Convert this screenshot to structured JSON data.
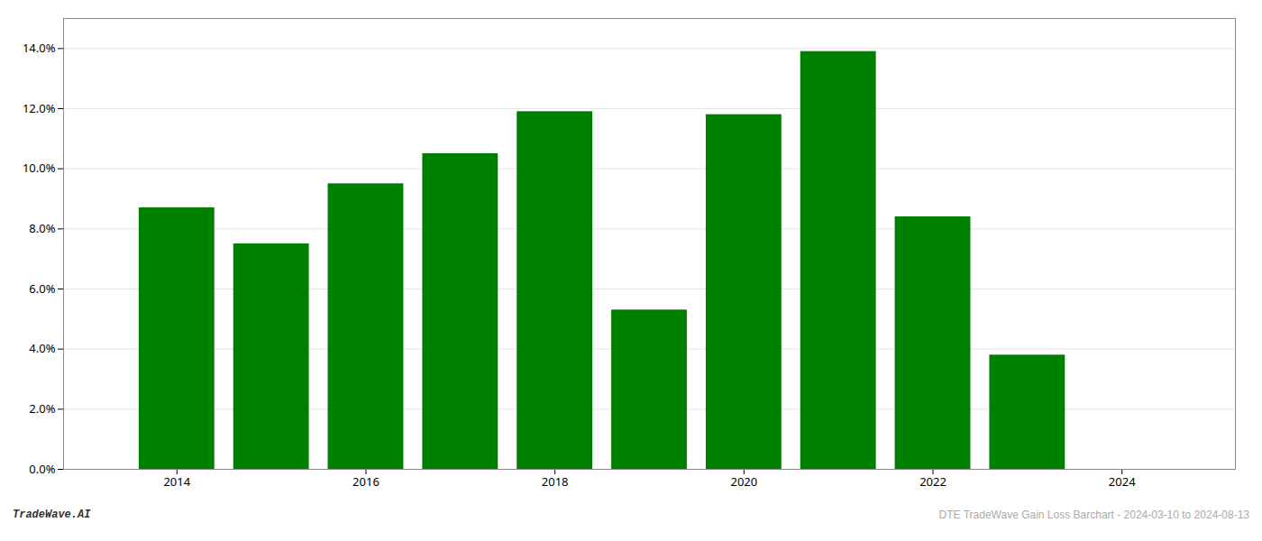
{
  "chart_data": {
    "type": "bar",
    "x": [
      2014,
      2015,
      2016,
      2017,
      2018,
      2019,
      2020,
      2021,
      2022,
      2023
    ],
    "values": [
      0.087,
      0.075,
      0.095,
      0.105,
      0.119,
      0.053,
      0.118,
      0.139,
      0.084,
      0.038
    ],
    "color": "#008000",
    "xlim": [
      2012.8,
      2025.2
    ],
    "xticks": [
      2014,
      2016,
      2018,
      2020,
      2022,
      2024
    ],
    "ylim": [
      0.0,
      0.15
    ],
    "yticks": [
      {
        "value": 0,
        "label": "0.0%"
      },
      {
        "value": 0.02,
        "label": "2.0%"
      },
      {
        "value": 0.04,
        "label": "4.0%"
      },
      {
        "value": 0.06,
        "label": "6.0%"
      },
      {
        "value": 0.08,
        "label": "8.0%"
      },
      {
        "value": 0.1,
        "label": "10.0%"
      },
      {
        "value": 0.12,
        "label": "12.0%"
      },
      {
        "value": 0.14,
        "label": "14.0%"
      }
    ],
    "grid": true,
    "annotations": [
      "TradeWave.AI",
      "DTE TradeWave Gain Loss Barchart - 2024-03-10 to 2024-08-13"
    ]
  }
}
